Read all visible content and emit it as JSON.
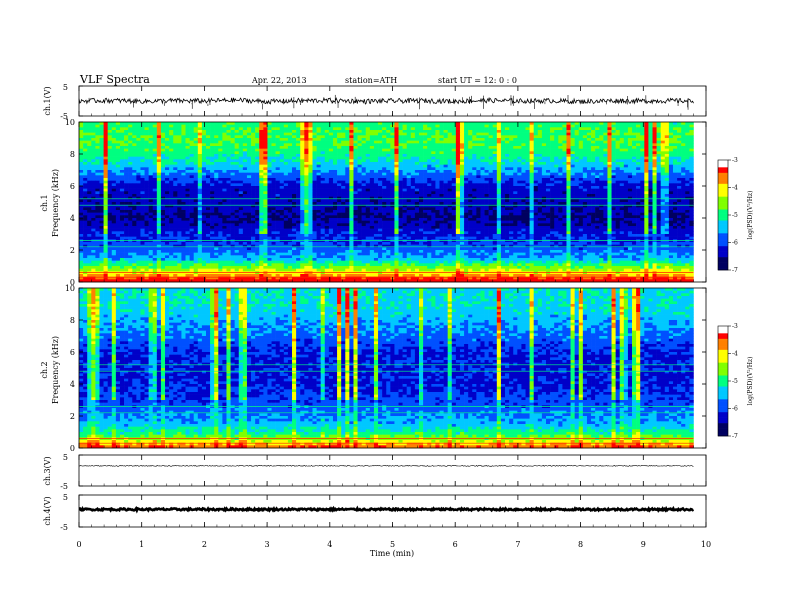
{
  "header": {
    "title": "VLF  Spectra",
    "date": "Apr. 22, 2013",
    "station": "station=ATH",
    "start": "start  UT  =    12: 0   : 0"
  },
  "colors": {
    "colormap": [
      "#000060",
      "#0000c8",
      "#0050ff",
      "#00c8ff",
      "#00ff80",
      "#80ff00",
      "#ffff00",
      "#ff8000",
      "#ff0000",
      "#ffffff"
    ],
    "trace": "#000000"
  },
  "chart_data": [
    {
      "type": "line",
      "panel": "ch1",
      "ylabel": "ch.1(V)",
      "ylim": [
        -5,
        5
      ],
      "yticks": [
        "5",
        "-5"
      ],
      "x": [
        0,
        0.5,
        1,
        1.5,
        2,
        2.5,
        3,
        3.5,
        4,
        4.5,
        5,
        5.5,
        6,
        6.5,
        7,
        7.5,
        8,
        8.5,
        9,
        9.5,
        9.8
      ],
      "values": [
        0,
        0.2,
        -0.1,
        0.1,
        0,
        0.3,
        -0.2,
        0.1,
        0.2,
        -0.1,
        0,
        0.1,
        -0.1,
        0.2,
        0,
        0.1,
        -0.2,
        0.1,
        0,
        0.1,
        0
      ]
    },
    {
      "type": "heatmap",
      "panel": "ch1-spectrogram",
      "label_top": "ch.1",
      "ylabel": "Frequency  (kHz)",
      "ylim": [
        0,
        10
      ],
      "yticks": [
        "0",
        "2",
        "4",
        "6",
        "8",
        "10"
      ],
      "xlim": [
        0,
        9.8
      ],
      "colorbar": {
        "label": "log(PSD)(V²/Hz)",
        "ticks": [
          "-3",
          "-4",
          "-5",
          "-6",
          "-7"
        ],
        "range": [
          -7,
          -3
        ]
      },
      "band_profile_khz": [
        [
          0.3,
          -3.5
        ],
        [
          0.6,
          -4.2
        ],
        [
          0.9,
          -4.6
        ],
        [
          1.5,
          -5.6
        ],
        [
          2.3,
          -6.0
        ],
        [
          3.0,
          -6.2
        ],
        [
          4.0,
          -6.6
        ],
        [
          5.0,
          -6.4
        ],
        [
          6.0,
          -6.3
        ],
        [
          7.0,
          -5.6
        ],
        [
          8.0,
          -5.0
        ],
        [
          9.0,
          -4.8
        ],
        [
          10.0,
          -5.0
        ]
      ]
    },
    {
      "type": "heatmap",
      "panel": "ch2-spectrogram",
      "label_top": "ch.2",
      "ylabel": "Frequency  (kHz)",
      "ylim": [
        0,
        10
      ],
      "yticks": [
        "0",
        "2",
        "4",
        "6",
        "8",
        "10"
      ],
      "xlim": [
        0,
        9.8
      ],
      "colorbar": {
        "label": "log(PSD)(V²/Hz)",
        "ticks": [
          "-3",
          "-4",
          "-5",
          "-6",
          "-7"
        ],
        "range": [
          -7,
          -3
        ]
      },
      "band_profile_khz": [
        [
          0.3,
          -4.0
        ],
        [
          0.6,
          -4.6
        ],
        [
          0.9,
          -5.0
        ],
        [
          1.5,
          -5.5
        ],
        [
          2.3,
          -5.8
        ],
        [
          3.0,
          -6.0
        ],
        [
          4.0,
          -6.2
        ],
        [
          5.0,
          -6.2
        ],
        [
          6.0,
          -6.2
        ],
        [
          7.0,
          -5.8
        ],
        [
          8.0,
          -5.5
        ],
        [
          9.0,
          -5.3
        ],
        [
          10.0,
          -5.3
        ]
      ]
    },
    {
      "type": "line",
      "panel": "ch3",
      "ylabel": "ch.3(V)",
      "ylim": [
        -5,
        5
      ],
      "yticks": [
        "5",
        "-5"
      ],
      "x": [
        0,
        9.8
      ],
      "values": [
        1.5,
        1.5
      ]
    },
    {
      "type": "line",
      "panel": "ch4",
      "ylabel": "ch.4(V)",
      "ylim": [
        -5,
        5
      ],
      "yticks": [
        "5",
        "-5"
      ],
      "x": [
        0,
        9.8
      ],
      "values": [
        0.5,
        0.5
      ]
    }
  ],
  "x_axis": {
    "label": "Time  (min)",
    "ticks": [
      "0",
      "1",
      "2",
      "3",
      "4",
      "5",
      "6",
      "7",
      "8",
      "9",
      "10"
    ],
    "xlim": [
      0,
      10
    ]
  }
}
